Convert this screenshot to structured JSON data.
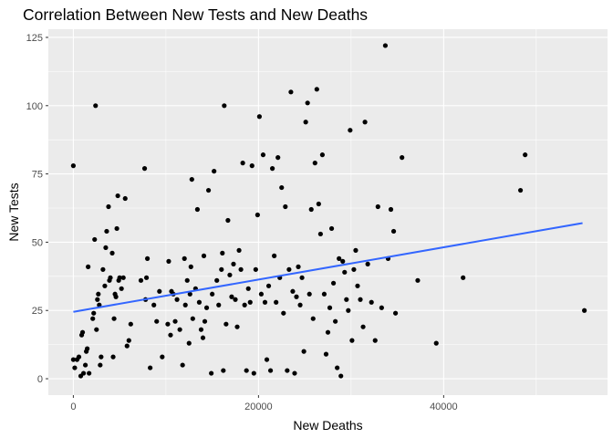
{
  "chart_data": {
    "type": "scatter",
    "title": "Correlation Between New Tests and New Deaths",
    "xlabel": "New Deaths",
    "ylabel": "New Tests",
    "xlim": [
      -2700,
      57700
    ],
    "ylim": [
      -6,
      128
    ],
    "x_ticks": [
      0,
      20000,
      40000
    ],
    "x_tick_labels": [
      "0",
      "20000",
      "40000"
    ],
    "y_ticks": [
      0,
      25,
      50,
      75,
      100,
      125
    ],
    "y_tick_labels": [
      "0",
      "25",
      "50",
      "75",
      "100",
      "125"
    ],
    "grid": true,
    "panel_color": "#ebebeb",
    "point_color": "#000000",
    "trend_color": "#3366ff",
    "trend": {
      "x": [
        0,
        55000
      ],
      "y": [
        24.5,
        57
      ]
    },
    "points": [
      [
        0,
        78
      ],
      [
        0,
        7
      ],
      [
        150,
        4
      ],
      [
        400,
        7
      ],
      [
        600,
        8
      ],
      [
        800,
        1
      ],
      [
        900,
        16
      ],
      [
        1000,
        17
      ],
      [
        1100,
        2
      ],
      [
        1300,
        5
      ],
      [
        1400,
        10
      ],
      [
        1500,
        11
      ],
      [
        1600,
        41
      ],
      [
        1700,
        2
      ],
      [
        2100,
        22
      ],
      [
        2200,
        24
      ],
      [
        2300,
        51
      ],
      [
        2400,
        100
      ],
      [
        2500,
        18
      ],
      [
        2600,
        29
      ],
      [
        2700,
        31
      ],
      [
        2800,
        27
      ],
      [
        2900,
        5
      ],
      [
        3000,
        8
      ],
      [
        3200,
        40
      ],
      [
        3400,
        34
      ],
      [
        3500,
        48
      ],
      [
        3600,
        54
      ],
      [
        3800,
        63
      ],
      [
        3900,
        36
      ],
      [
        4000,
        37
      ],
      [
        4200,
        46
      ],
      [
        4300,
        8
      ],
      [
        4400,
        22
      ],
      [
        4500,
        31
      ],
      [
        4600,
        30
      ],
      [
        4700,
        55
      ],
      [
        4800,
        67
      ],
      [
        4900,
        36
      ],
      [
        5000,
        37
      ],
      [
        5200,
        33
      ],
      [
        5400,
        37
      ],
      [
        5600,
        66
      ],
      [
        5800,
        12
      ],
      [
        6000,
        14
      ],
      [
        6200,
        20
      ],
      [
        7300,
        36
      ],
      [
        7700,
        77
      ],
      [
        7800,
        29
      ],
      [
        7900,
        37
      ],
      [
        8000,
        44
      ],
      [
        8300,
        4
      ],
      [
        8700,
        27
      ],
      [
        9000,
        21
      ],
      [
        9300,
        32
      ],
      [
        9600,
        8
      ],
      [
        10200,
        20
      ],
      [
        10300,
        43
      ],
      [
        10500,
        16
      ],
      [
        10600,
        32
      ],
      [
        10800,
        31
      ],
      [
        11000,
        21
      ],
      [
        11200,
        29
      ],
      [
        11500,
        18
      ],
      [
        11800,
        5
      ],
      [
        12000,
        44
      ],
      [
        12100,
        27
      ],
      [
        12300,
        36
      ],
      [
        12500,
        13
      ],
      [
        12600,
        31
      ],
      [
        12700,
        41
      ],
      [
        12800,
        73
      ],
      [
        12900,
        22
      ],
      [
        13200,
        33
      ],
      [
        13400,
        62
      ],
      [
        13600,
        28
      ],
      [
        13800,
        18
      ],
      [
        14000,
        15
      ],
      [
        14100,
        45
      ],
      [
        14200,
        21
      ],
      [
        14400,
        26
      ],
      [
        14600,
        69
      ],
      [
        14900,
        2
      ],
      [
        15000,
        31
      ],
      [
        15200,
        76
      ],
      [
        15500,
        36
      ],
      [
        15700,
        27
      ],
      [
        16000,
        40
      ],
      [
        16100,
        46
      ],
      [
        16200,
        3
      ],
      [
        16300,
        100
      ],
      [
        16500,
        20
      ],
      [
        16700,
        58
      ],
      [
        16900,
        38
      ],
      [
        17100,
        30
      ],
      [
        17300,
        42
      ],
      [
        17500,
        29
      ],
      [
        17700,
        19
      ],
      [
        17900,
        47
      ],
      [
        18100,
        40
      ],
      [
        18300,
        79
      ],
      [
        18500,
        27
      ],
      [
        18700,
        3
      ],
      [
        18900,
        33
      ],
      [
        19100,
        28
      ],
      [
        19300,
        78
      ],
      [
        19500,
        2
      ],
      [
        19700,
        40
      ],
      [
        19900,
        60
      ],
      [
        20100,
        96
      ],
      [
        20300,
        31
      ],
      [
        20500,
        82
      ],
      [
        20700,
        28
      ],
      [
        20900,
        7
      ],
      [
        21100,
        34
      ],
      [
        21300,
        3
      ],
      [
        21500,
        77
      ],
      [
        21700,
        45
      ],
      [
        21900,
        28
      ],
      [
        22100,
        81
      ],
      [
        22300,
        37
      ],
      [
        22500,
        70
      ],
      [
        22700,
        24
      ],
      [
        22900,
        63
      ],
      [
        23100,
        3
      ],
      [
        23300,
        40
      ],
      [
        23500,
        105
      ],
      [
        23700,
        32
      ],
      [
        23900,
        2
      ],
      [
        24100,
        30
      ],
      [
        24300,
        41
      ],
      [
        24500,
        27
      ],
      [
        24700,
        37
      ],
      [
        24900,
        10
      ],
      [
        25100,
        94
      ],
      [
        25300,
        101
      ],
      [
        25500,
        31
      ],
      [
        25700,
        62
      ],
      [
        25900,
        22
      ],
      [
        26100,
        79
      ],
      [
        26300,
        106
      ],
      [
        26500,
        64
      ],
      [
        26700,
        53
      ],
      [
        26900,
        82
      ],
      [
        27100,
        31
      ],
      [
        27300,
        9
      ],
      [
        27500,
        17
      ],
      [
        27700,
        26
      ],
      [
        27900,
        55
      ],
      [
        28100,
        35
      ],
      [
        28300,
        21
      ],
      [
        28500,
        4
      ],
      [
        28700,
        44
      ],
      [
        28900,
        1
      ],
      [
        29100,
        43
      ],
      [
        29300,
        39
      ],
      [
        29500,
        29
      ],
      [
        29700,
        25
      ],
      [
        29900,
        91
      ],
      [
        30100,
        14
      ],
      [
        30300,
        40
      ],
      [
        30500,
        47
      ],
      [
        30700,
        34
      ],
      [
        31000,
        29
      ],
      [
        31300,
        19
      ],
      [
        31500,
        94
      ],
      [
        31800,
        42
      ],
      [
        32200,
        28
      ],
      [
        32600,
        14
      ],
      [
        32900,
        63
      ],
      [
        33300,
        26
      ],
      [
        33700,
        122
      ],
      [
        34000,
        44
      ],
      [
        34300,
        62
      ],
      [
        34600,
        54
      ],
      [
        34800,
        24
      ],
      [
        35500,
        81
      ],
      [
        37200,
        36
      ],
      [
        39200,
        13
      ],
      [
        42100,
        37
      ],
      [
        48300,
        69
      ],
      [
        48800,
        82
      ],
      [
        55200,
        25
      ]
    ]
  }
}
